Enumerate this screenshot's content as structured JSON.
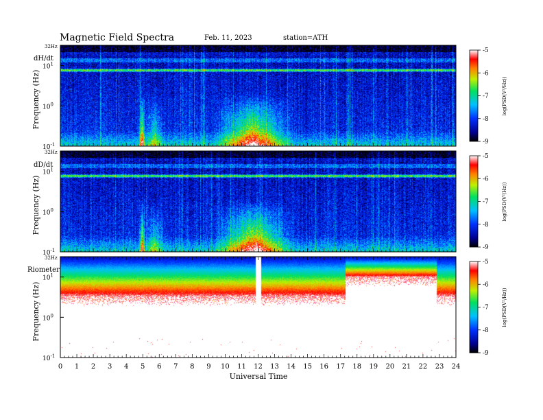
{
  "header": {
    "title": "Magnetic  Field  Spectra",
    "date": "Feb. 11, 2023",
    "station": "station=ATH"
  },
  "colorbar": {
    "label": "log(PSD(V²/Hz))",
    "ticks": [
      "-5",
      "-6",
      "-7",
      "-8",
      "-9"
    ]
  },
  "chart_data": [
    {
      "type": "heatmap",
      "panel_label": "dH/dt",
      "ylabel": "Frequency  (Hz)",
      "top_label": "32Hz",
      "y_ticks": [
        {
          "base": "10",
          "exp": "1",
          "value": 10
        },
        {
          "base": "10",
          "exp": "0",
          "value": 1
        },
        {
          "base": "10",
          "exp": "-1",
          "value": 0.1
        }
      ],
      "y_scale": "log",
      "ylim": [
        0.1,
        32
      ],
      "xlim": [
        0,
        24
      ],
      "color_range": [
        -9,
        -5
      ],
      "lines_hz": [
        7.8,
        14,
        20
      ],
      "enhanced_intervals": [
        {
          "x": 4.8,
          "dur": 0.3,
          "strength": 1.0
        },
        {
          "x": 5.2,
          "dur": 1.0,
          "strength": 0.5
        },
        {
          "x": 9.8,
          "dur": 3.8,
          "strength": 1.0
        }
      ]
    },
    {
      "type": "heatmap",
      "panel_label": "dD/dt",
      "ylabel": "Frequency  (Hz)",
      "top_label": "32Hz",
      "y_ticks": [
        {
          "base": "10",
          "exp": "1",
          "value": 10
        },
        {
          "base": "10",
          "exp": "0",
          "value": 1
        },
        {
          "base": "10",
          "exp": "-1",
          "value": 0.1
        }
      ],
      "y_scale": "log",
      "ylim": [
        0.1,
        32
      ],
      "xlim": [
        0,
        24
      ],
      "color_range": [
        -9,
        -5
      ],
      "lines_hz": [
        7.8,
        14,
        20
      ],
      "enhanced_intervals": [
        {
          "x": 4.8,
          "dur": 0.3,
          "strength": 1.0
        },
        {
          "x": 5.2,
          "dur": 1.0,
          "strength": 0.5
        },
        {
          "x": 9.8,
          "dur": 3.8,
          "strength": 1.0
        }
      ]
    },
    {
      "type": "heatmap",
      "panel_label": "Riometer",
      "ylabel": "Frequency  (Hz)",
      "top_label": "32Hz",
      "y_ticks": [
        {
          "base": "10",
          "exp": "1",
          "value": 10
        },
        {
          "base": "10",
          "exp": "0",
          "value": 1
        },
        {
          "base": "10",
          "exp": "-1",
          "value": 0.1
        }
      ],
      "y_scale": "log",
      "ylim": [
        0.1,
        32
      ],
      "xlim": [
        0,
        24
      ],
      "color_range": [
        -9,
        -5
      ],
      "gap_interval": [
        11.85,
        12.15
      ],
      "elevated_interval": [
        17.3,
        22.8
      ]
    }
  ],
  "x_axis": {
    "label": "Universal  Time",
    "ticks": [
      "0",
      "1",
      "2",
      "3",
      "4",
      "5",
      "6",
      "7",
      "8",
      "9",
      "10",
      "11",
      "12",
      "13",
      "14",
      "15",
      "16",
      "17",
      "18",
      "19",
      "20",
      "21",
      "22",
      "23",
      "24"
    ]
  }
}
